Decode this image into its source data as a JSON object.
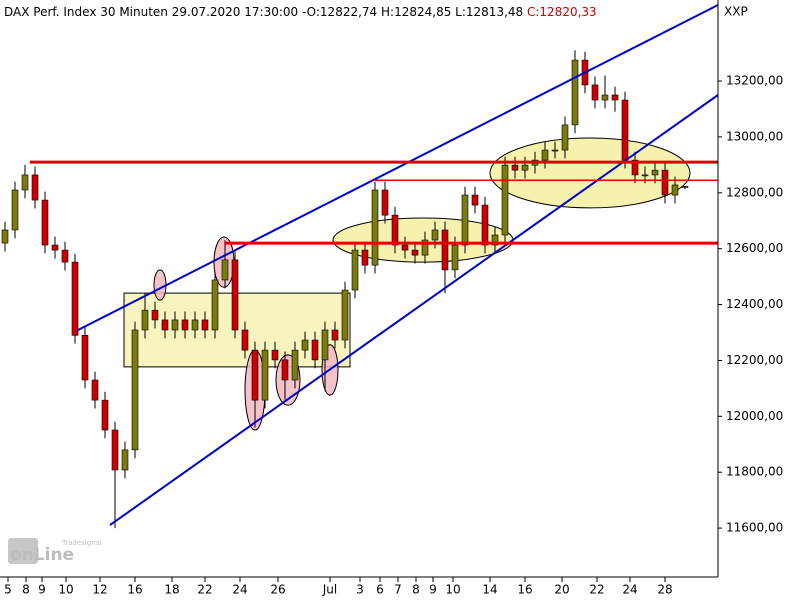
{
  "chart_data": {
    "type": "candlestick",
    "header": {
      "title": "DAX Perf. Index 30 Minuten",
      "date": "29.07.2020 17:30:00 -",
      "open": "O:12822,74",
      "high": "H:12824,85",
      "low": "L:12813,48",
      "close": "C:12820,33"
    },
    "symbol": "XXP",
    "logo": {
      "small": "Tradesignal",
      "big": "onLine"
    },
    "up_color": "#7a7a10",
    "down_color": "#cc0000",
    "x": [
      0,
      1,
      2,
      3,
      4,
      5,
      6,
      7,
      8,
      9,
      10,
      11,
      12,
      13,
      14,
      15,
      16,
      17,
      18,
      19,
      20,
      21,
      22,
      23,
      24,
      25,
      26,
      27,
      28,
      29,
      30,
      31,
      32,
      33,
      34,
      35,
      36,
      37,
      38,
      39,
      40,
      41,
      42,
      43,
      44,
      45,
      46,
      47,
      48,
      49,
      50,
      51,
      52,
      53,
      54,
      55,
      56,
      57,
      58,
      59,
      60,
      61,
      62,
      63,
      64,
      65,
      66,
      67,
      68
    ],
    "open": [
      12620,
      12667,
      12810,
      12864,
      12774,
      12613,
      12595,
      12552,
      12290,
      12130,
      12058,
      11951,
      11808,
      11880,
      12309,
      12380,
      12345,
      12309,
      12345,
      12309,
      12345,
      12309,
      12488,
      12560,
      12309,
      12237,
      12058,
      12237,
      12202,
      12130,
      12237,
      12273,
      12202,
      12309,
      12273,
      12452,
      12595,
      12541,
      12810,
      12720,
      12613,
      12595,
      12577,
      12631,
      12667,
      12524,
      12613,
      12792,
      12756,
      12613,
      12649,
      12899,
      12881,
      12899,
      12917,
      12953,
      12953,
      13043,
      13275,
      13186,
      13132,
      13150,
      13132,
      12917,
      12864,
      12864,
      12881,
      12792,
      12822.74
    ],
    "high": [
      12697,
      12840,
      12900,
      12894,
      12804,
      12643,
      12625,
      12582,
      12320,
      12160,
      12088,
      11981,
      11910,
      12339,
      12440,
      12410,
      12375,
      12375,
      12375,
      12375,
      12375,
      12518,
      12630,
      12590,
      12339,
      12267,
      12267,
      12267,
      12232,
      12267,
      12303,
      12303,
      12339,
      12339,
      12482,
      12625,
      12625,
      12840,
      12840,
      12750,
      12643,
      12625,
      12661,
      12697,
      12697,
      12643,
      12822,
      12822,
      12786,
      12679,
      12929,
      12929,
      12929,
      12947,
      12983,
      12983,
      13073,
      13310,
      13305,
      13216,
      13220,
      13180,
      13162,
      12947,
      12894,
      12911,
      12911,
      12858,
      12824.85
    ],
    "low": [
      12590,
      12637,
      12780,
      12744,
      12583,
      12565,
      12522,
      12260,
      12100,
      12028,
      11921,
      11600,
      11778,
      11850,
      12279,
      12315,
      12279,
      12279,
      12279,
      12279,
      12279,
      12279,
      12458,
      12279,
      12207,
      11960,
      12028,
      12172,
      12060,
      12100,
      12207,
      12172,
      12090,
      12243,
      12243,
      12422,
      12511,
      12511,
      12690,
      12583,
      12565,
      12547,
      12547,
      12601,
      12440,
      12494,
      12583,
      12726,
      12583,
      12583,
      12619,
      12851,
      12851,
      12869,
      12887,
      12923,
      12923,
      13013,
      13156,
      13102,
      13102,
      13090,
      12887,
      12834,
      12834,
      12834,
      12762,
      12762,
      12813.48
    ],
    "close": [
      12667,
      12810,
      12864,
      12774,
      12613,
      12595,
      12552,
      12290,
      12130,
      12058,
      11951,
      11808,
      11880,
      12309,
      12380,
      12345,
      12309,
      12345,
      12309,
      12345,
      12309,
      12488,
      12560,
      12309,
      12237,
      12058,
      12237,
      12202,
      12130,
      12237,
      12273,
      12202,
      12309,
      12273,
      12452,
      12595,
      12541,
      12810,
      12720,
      12613,
      12595,
      12577,
      12631,
      12667,
      12524,
      12613,
      12792,
      12756,
      12613,
      12649,
      12899,
      12881,
      12899,
      12917,
      12953,
      12953,
      13043,
      13275,
      13186,
      13132,
      13150,
      13132,
      12917,
      12864,
      12864,
      12881,
      12792,
      12828,
      12820.33
    ],
    "xlim": [
      -0.5,
      71.3
    ],
    "ylim": [
      11425,
      13490
    ],
    "xticks": [
      {
        "value": 0.3,
        "label": "5"
      },
      {
        "value": 2.1,
        "label": "8"
      },
      {
        "value": 3.7,
        "label": "9"
      },
      {
        "value": 6.1,
        "label": "10"
      },
      {
        "value": 9.5,
        "label": "12"
      },
      {
        "value": 13,
        "label": "16"
      },
      {
        "value": 16.7,
        "label": "18"
      },
      {
        "value": 20,
        "label": "22"
      },
      {
        "value": 23.5,
        "label": "24"
      },
      {
        "value": 27.3,
        "label": "26"
      },
      {
        "value": 32.5,
        "label": "Jul"
      },
      {
        "value": 35.5,
        "label": "3"
      },
      {
        "value": 37.5,
        "label": "6"
      },
      {
        "value": 39.3,
        "label": "7"
      },
      {
        "value": 41.1,
        "label": "8"
      },
      {
        "value": 42.8,
        "label": "9"
      },
      {
        "value": 44.8,
        "label": "10"
      },
      {
        "value": 48.5,
        "label": "14"
      },
      {
        "value": 52,
        "label": "16"
      },
      {
        "value": 55.7,
        "label": "20"
      },
      {
        "value": 59.2,
        "label": "22"
      },
      {
        "value": 62.5,
        "label": "24"
      },
      {
        "value": 66,
        "label": "28"
      }
    ],
    "yticks": [
      {
        "value": 11600,
        "label": "11600,00"
      },
      {
        "value": 11800,
        "label": "11800,00"
      },
      {
        "value": 12000,
        "label": "12000,00"
      },
      {
        "value": 12200,
        "label": "12200,00"
      },
      {
        "value": 12400,
        "label": "12400,00"
      },
      {
        "value": 12600,
        "label": "12600,00"
      },
      {
        "value": 12800,
        "label": "12800,00"
      },
      {
        "value": 13000,
        "label": "13000,00"
      },
      {
        "value": 13200,
        "label": "13200,00"
      }
    ],
    "ellipses": [
      {
        "cx": 41.8,
        "cy": 12631,
        "rx": 9,
        "ry": 79,
        "color": "#f5f0a0"
      },
      {
        "cx": 58.5,
        "cy": 12871,
        "rx": 10,
        "ry": 125,
        "color": "#f5f0a0"
      },
      {
        "cx": 21.9,
        "cy": 12552,
        "rx": 1,
        "ry": 90,
        "color": "#f2b8c0"
      },
      {
        "cx": 25,
        "cy": 12094,
        "rx": 1,
        "ry": 143,
        "color": "#f2b8c0"
      },
      {
        "cx": 28.3,
        "cy": 12130,
        "rx": 1.2,
        "ry": 90,
        "color": "#f2b8c0"
      },
      {
        "cx": 32.5,
        "cy": 12166,
        "rx": 0.8,
        "ry": 90,
        "color": "#f2b8c0"
      },
      {
        "cx": 15.5,
        "cy": 12470,
        "rx": 0.6,
        "ry": 54,
        "color": "#f2b8c0"
      }
    ],
    "boxes": [
      {
        "x": [
          11.9,
          34.5
        ],
        "y": [
          12441,
          12177
        ],
        "color": "#f8f4c0"
      }
    ],
    "lines": [
      {
        "x": [
          7.3,
          71.3
        ],
        "y": [
          12309,
          13472
        ],
        "color": "#0000cc",
        "width": 2
      },
      {
        "x": [
          10.5,
          71.3
        ],
        "y": [
          11611,
          13150
        ],
        "color": "#0000cc",
        "width": 2
      },
      {
        "x": [
          2.5,
          71.3
        ],
        "y": [
          12910,
          12910
        ],
        "color": "#e00000",
        "width": 3
      },
      {
        "x": [
          37,
          71.3
        ],
        "y": [
          12845,
          12845
        ],
        "color": "#e00000",
        "width": 1.5
      },
      {
        "x": [
          22,
          71.3
        ],
        "y": [
          12620,
          12620
        ],
        "color": "#e00000",
        "width": 3
      }
    ]
  }
}
